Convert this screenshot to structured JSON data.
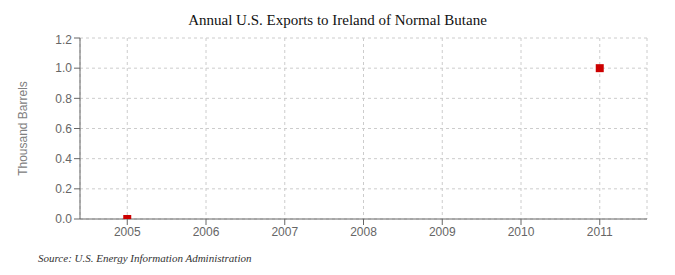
{
  "chart_data": {
    "type": "scatter",
    "title": "Annual U.S. Exports to Ireland of Normal Butane",
    "ylabel": "Thousand Barrels",
    "annotations": [
      "Source: U.S. Energy Information Administration"
    ],
    "x": [
      2005,
      2011
    ],
    "values": [
      0.0,
      1.0
    ],
    "color": "#cc0000",
    "marker": "square",
    "xlim": [
      2004.4,
      2011.6
    ],
    "xticks": [
      2005,
      2006,
      2007,
      2008,
      2009,
      2010,
      2011
    ],
    "ylim": [
      0.0,
      1.2
    ],
    "yticks": [
      {
        "value": 0,
        "label": "0.0"
      },
      0.2,
      0.4,
      0.6,
      0.8,
      {
        "value": 1,
        "label": "1.0"
      },
      1.2
    ],
    "grid": true
  }
}
